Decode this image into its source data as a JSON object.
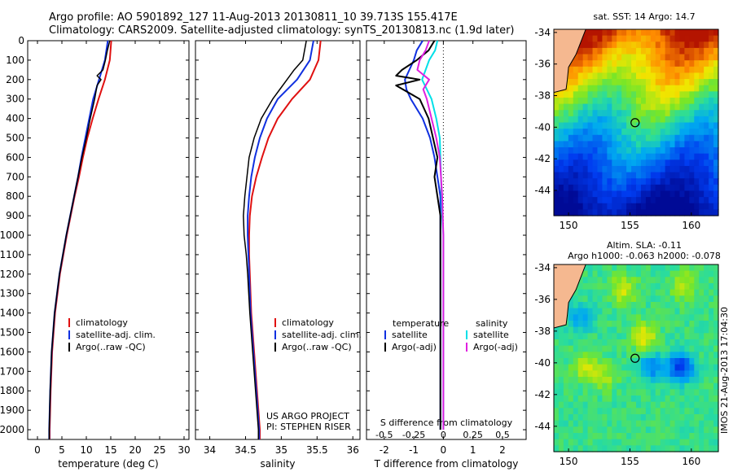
{
  "header": {
    "title_line1": "Argo profile: AO 5901892_127 11-Aug-2013 20130811_10 39.713S 155.417E",
    "title_line2": "Climatology: CARS2009. Satellite-adjusted climatology: synTS_20130813.nc (1.9d later)"
  },
  "colors": {
    "climatology": "#e01010",
    "satellite_adj": "#1030e0",
    "argo": "#000000",
    "salinity_satellite": "#00e0e8",
    "salinity_argo": "#e020e0"
  },
  "chart_data": [
    {
      "type": "line",
      "id": "temperature",
      "xlabel": "temperature (deg C)",
      "xlim": [
        -2,
        31
      ],
      "xticks": [
        0,
        5,
        10,
        15,
        20,
        25,
        30
      ],
      "ylim": [
        2050,
        0
      ],
      "yticks": [
        0,
        100,
        200,
        300,
        400,
        500,
        600,
        700,
        800,
        900,
        1000,
        1100,
        1200,
        1300,
        1400,
        1500,
        1600,
        1700,
        1800,
        1900,
        2000
      ],
      "legend": [
        "climatology",
        "satellite-adj. clim.",
        "Argo(..raw -QC)"
      ],
      "series": [
        {
          "name": "climatology",
          "color_key": "climatology",
          "depth": [
            0,
            100,
            200,
            300,
            400,
            500,
            600,
            700,
            800,
            1000,
            1200,
            1400,
            1600,
            1800,
            2000,
            2050
          ],
          "values": [
            15.1,
            14.8,
            13.8,
            12.5,
            11.3,
            10.2,
            9.3,
            8.5,
            7.6,
            6.0,
            4.6,
            3.6,
            3.0,
            2.7,
            2.5,
            2.5
          ]
        },
        {
          "name": "satellite-adj. clim.",
          "color_key": "satellite_adj",
          "depth": [
            0,
            100,
            200,
            300,
            400,
            500,
            600,
            700,
            800,
            1000,
            1200,
            1400,
            1600,
            1800,
            2000,
            2050
          ],
          "values": [
            14.4,
            13.8,
            12.6,
            11.4,
            10.6,
            9.8,
            9.0,
            8.3,
            7.5,
            5.9,
            4.5,
            3.5,
            2.9,
            2.6,
            2.4,
            2.4
          ]
        },
        {
          "name": "Argo(..raw -QC)",
          "color_key": "argo",
          "depth": [
            0,
            50,
            100,
            150,
            180,
            200,
            230,
            300,
            400,
            500,
            600,
            700,
            800,
            1000,
            1200,
            1400,
            1600,
            1800,
            2000,
            2050
          ],
          "values": [
            14.8,
            14.3,
            13.9,
            13.4,
            12.2,
            13.0,
            12.2,
            11.7,
            10.8,
            10.0,
            9.1,
            8.3,
            7.5,
            5.9,
            4.5,
            3.5,
            2.9,
            2.6,
            2.4,
            2.4
          ]
        }
      ]
    },
    {
      "type": "line",
      "id": "salinity",
      "xlabel": "salinity",
      "xlim": [
        33.8,
        36.1
      ],
      "xticks": [
        34,
        34.5,
        35,
        35.5,
        36
      ],
      "ylim": [
        2050,
        0
      ],
      "legend": [
        "climatology",
        "satellite-adj. clim.",
        "Argo(..raw -QC)"
      ],
      "annotation": [
        "US ARGO PROJECT",
        "PI: STEPHEN RISER"
      ],
      "series": [
        {
          "name": "climatology",
          "color_key": "climatology",
          "depth": [
            0,
            100,
            200,
            300,
            400,
            500,
            600,
            700,
            800,
            900,
            1000,
            1100,
            1200,
            1400,
            1600,
            1800,
            2000,
            2050
          ],
          "values": [
            35.55,
            35.52,
            35.4,
            35.15,
            34.95,
            34.82,
            34.73,
            34.65,
            34.59,
            34.56,
            34.55,
            34.55,
            34.56,
            34.58,
            34.62,
            34.66,
            34.7,
            34.7
          ]
        },
        {
          "name": "satellite-adj. clim.",
          "color_key": "satellite_adj",
          "depth": [
            0,
            100,
            200,
            300,
            400,
            500,
            600,
            700,
            800,
            900,
            1000,
            1100,
            1200,
            1400,
            1600,
            1800,
            2000,
            2050
          ],
          "values": [
            35.45,
            35.4,
            35.22,
            34.95,
            34.8,
            34.7,
            34.63,
            34.58,
            34.55,
            34.53,
            34.53,
            34.54,
            34.55,
            34.57,
            34.61,
            34.65,
            34.69,
            34.69
          ]
        },
        {
          "name": "Argo(..raw -QC)",
          "color_key": "argo",
          "depth": [
            0,
            100,
            150,
            200,
            250,
            300,
            400,
            500,
            600,
            700,
            800,
            900,
            1000,
            1100,
            1200,
            1400,
            1600,
            1800,
            2000,
            2050
          ],
          "values": [
            35.35,
            35.3,
            35.18,
            35.08,
            34.98,
            34.88,
            34.72,
            34.62,
            34.55,
            34.52,
            34.49,
            34.47,
            34.48,
            34.51,
            34.53,
            34.56,
            34.6,
            34.64,
            34.68,
            34.68
          ]
        }
      ]
    },
    {
      "type": "line",
      "id": "difference",
      "xlabel": "T difference from climatology",
      "top_axis_label": "S difference from climatology",
      "xlim": [
        -2.6,
        2.8
      ],
      "xticks": [
        -2,
        -1,
        0,
        1,
        2
      ],
      "sticks_labels": [
        "-0.5",
        "-0.25",
        "0",
        "0.25",
        "0.5"
      ],
      "sticks_values": [
        -0.5,
        -0.25,
        0,
        0.25,
        0.5
      ],
      "s_scale": 4,
      "ylim": [
        2050,
        0
      ],
      "legend_left_title": "temperature",
      "legend_right_title": "salinity",
      "legend_left": [
        "satellite",
        "Argo(-adj)"
      ],
      "legend_right": [
        "satellite",
        "Argo(-adj)"
      ],
      "series": [
        {
          "name": "T satellite",
          "color_key": "satellite_adj",
          "depth": [
            0,
            50,
            100,
            150,
            200,
            250,
            300,
            400,
            500,
            600,
            700,
            800,
            1000,
            1200,
            1400,
            1600,
            1800,
            2000
          ],
          "values": [
            -0.7,
            -0.9,
            -1.0,
            -1.15,
            -1.3,
            -1.25,
            -1.1,
            -0.7,
            -0.45,
            -0.3,
            -0.2,
            -0.1,
            -0.1,
            -0.1,
            -0.1,
            -0.1,
            -0.1,
            -0.1
          ]
        },
        {
          "name": "T Argo(-adj)",
          "color_key": "argo",
          "depth": [
            0,
            50,
            100,
            150,
            180,
            200,
            230,
            300,
            400,
            500,
            600,
            700,
            800,
            900,
            1000,
            1100,
            1200,
            1400,
            1600,
            1800,
            2000
          ],
          "values": [
            -0.3,
            -0.5,
            -0.9,
            -1.4,
            -1.6,
            -0.8,
            -1.6,
            -0.8,
            -0.5,
            -0.35,
            -0.2,
            -0.3,
            -0.2,
            -0.1,
            -0.1,
            -0.1,
            -0.1,
            -0.1,
            -0.1,
            -0.1,
            -0.1
          ]
        },
        {
          "name": "S satellite",
          "color_key": "salinity_satellite",
          "depth": [
            0,
            50,
            100,
            200,
            300,
            400,
            500,
            700,
            900,
            1000,
            1200,
            1400,
            1600,
            1800,
            2000
          ],
          "values": [
            -0.05,
            -0.07,
            -0.12,
            -0.18,
            -0.1,
            -0.06,
            -0.03,
            -0.02,
            -0.01,
            0.0,
            0.0,
            0.0,
            0.0,
            0.0,
            0.0
          ]
        },
        {
          "name": "S Argo(-adj)",
          "color_key": "salinity_argo",
          "depth": [
            0,
            50,
            100,
            150,
            200,
            250,
            300,
            400,
            500,
            600,
            700,
            800,
            1000,
            1200,
            1400,
            1600,
            1800,
            2000
          ],
          "values": [
            -0.12,
            -0.15,
            -0.2,
            -0.22,
            -0.12,
            -0.17,
            -0.14,
            -0.1,
            -0.06,
            -0.03,
            -0.02,
            -0.01,
            0.0,
            0.0,
            0.0,
            0.0,
            0.0,
            0.0
          ]
        }
      ]
    },
    {
      "type": "heatmap",
      "id": "sst_map",
      "title": "sat. SST: 14 Argo: 14.7",
      "xticks": [
        150,
        155,
        160
      ],
      "yticks": [
        -34,
        -36,
        -38,
        -40,
        -42,
        -44
      ],
      "xlim": [
        148.8,
        162.2
      ],
      "ylim": [
        -45.6,
        -33.8
      ],
      "marker": {
        "lon": 155.417,
        "lat": -39.713
      }
    },
    {
      "type": "heatmap",
      "id": "sla_map",
      "title_line1": "Altim. SLA: -0.11",
      "title_line2": "Argo h1000: -0.063 h2000: -0.078",
      "xticks": [
        150,
        155,
        160
      ],
      "yticks": [
        -34,
        -36,
        -38,
        -40,
        -42,
        -44
      ],
      "xlim": [
        148.8,
        162.2
      ],
      "ylim": [
        -45.6,
        -33.8
      ],
      "marker": {
        "lon": 155.417,
        "lat": -39.713
      }
    }
  ],
  "side_text": "IMOS 21-Aug-2013 17:04:30"
}
